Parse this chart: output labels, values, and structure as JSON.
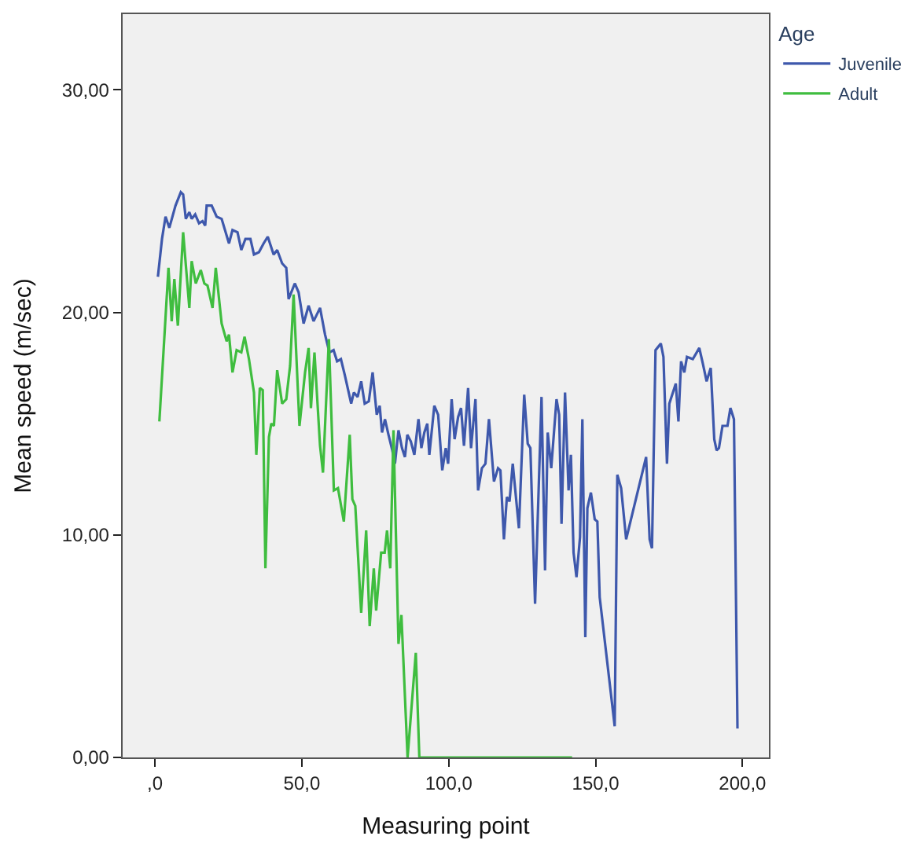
{
  "chart_data": {
    "type": "line",
    "xlabel": "Measuring point",
    "ylabel": "Mean speed (m/sec)",
    "legend_title": "Age",
    "legend": "top right",
    "grid": false,
    "marker": "none",
    "line_style": "solid",
    "xlim": [
      -11,
      209
    ],
    "ylim": [
      0,
      33.4
    ],
    "xticks": [
      {
        "value": 0,
        "label": ",0"
      },
      {
        "value": 50,
        "label": "50,0"
      },
      {
        "value": 100,
        "label": "100,0"
      },
      {
        "value": 150,
        "label": "150,0"
      },
      {
        "value": 200,
        "label": "200,0"
      }
    ],
    "yticks": [
      {
        "value": 0,
        "label": "0,00"
      },
      {
        "value": 10,
        "label": "10,00"
      },
      {
        "value": 20,
        "label": "20,00"
      },
      {
        "value": 30,
        "label": "30,00"
      }
    ],
    "series": [
      {
        "name": "Juvenile",
        "color": "#3e58ac",
        "x": [
          1,
          2.4,
          3.6,
          4.9,
          7,
          8.8,
          9.6,
          10.5,
          11.7,
          12.5,
          13.7,
          15,
          16.2,
          17.1,
          17.6,
          19.3,
          21,
          22.7,
          25.2,
          26.4,
          28.1,
          29.4,
          30.8,
          32.5,
          33.7,
          35.4,
          37,
          38.4,
          40.4,
          41.6,
          43.3,
          44.7,
          45.5,
          47.6,
          48.9,
          50.6,
          52.3,
          54,
          56.2,
          57.9,
          59.4,
          60.8,
          62,
          63.3,
          64.6,
          66.8,
          67.7,
          69,
          70.2,
          71.4,
          72.8,
          74.1,
          75.5,
          76.5,
          77.3,
          78.3,
          79.5,
          80.8,
          81.7,
          82.9,
          84.1,
          85.1,
          85.9,
          87.1,
          88.3,
          89.7,
          90.7,
          91.7,
          92.7,
          93.4,
          95.1,
          96.4,
          97.8,
          99,
          99.8,
          101,
          102,
          103.2,
          104.2,
          105.2,
          106.6,
          107.6,
          109.1,
          110,
          111.3,
          112.5,
          113.7,
          115.4,
          116.8,
          117.6,
          118.8,
          119.8,
          120.7,
          121.8,
          123.9,
          125.7,
          126.9,
          127.8,
          129.4,
          131.6,
          132.8,
          133.7,
          134.9,
          136.7,
          137.6,
          138.4,
          139.6,
          140.8,
          141.6,
          142.5,
          143.5,
          144.7,
          145.5,
          146.5,
          147.2,
          148.4,
          149.7,
          150.6,
          151.4,
          156.5,
          157.4,
          158.7,
          160.4,
          167.2,
          168.4,
          169.2,
          170.4,
          172.2,
          173.1,
          174.3,
          175.1,
          177.3,
          178.2,
          179.1,
          180.2,
          181.1,
          183.1,
          185.3,
          186.5,
          187.8,
          189.2,
          190.4,
          191.2,
          192,
          193.2,
          194.9,
          195.9,
          197.1,
          198.3
        ],
        "values": [
          21.6,
          23.3,
          24.3,
          23.8,
          24.8,
          25.4,
          25.3,
          24.2,
          24.5,
          24.2,
          24.4,
          24.0,
          24.1,
          23.9,
          24.8,
          24.8,
          24.3,
          24.2,
          23.1,
          23.7,
          23.6,
          22.8,
          23.3,
          23.3,
          22.6,
          22.7,
          23.1,
          23.4,
          22.6,
          22.8,
          22.2,
          22.0,
          20.6,
          21.3,
          20.9,
          19.5,
          20.3,
          19.6,
          20.2,
          19.0,
          18.2,
          18.3,
          17.8,
          17.9,
          17.2,
          15.9,
          16.4,
          16.2,
          16.9,
          15.9,
          16.0,
          17.3,
          15.4,
          15.8,
          14.6,
          15.2,
          14.5,
          13.8,
          13.2,
          14.7,
          13.9,
          13.5,
          14.5,
          14.2,
          13.6,
          15.2,
          13.9,
          14.6,
          15.0,
          13.6,
          15.8,
          15.4,
          12.9,
          13.9,
          13.2,
          16.1,
          14.3,
          15.3,
          15.7,
          14.0,
          16.6,
          13.9,
          16.1,
          12.0,
          13.0,
          13.2,
          15.2,
          12.4,
          13.0,
          12.9,
          9.8,
          11.7,
          11.5,
          13.2,
          10.3,
          16.3,
          14.1,
          13.9,
          6.9,
          16.2,
          8.4,
          14.6,
          13.0,
          16.1,
          15.4,
          10.5,
          16.4,
          12.0,
          13.6,
          9.2,
          8.1,
          9.9,
          15.2,
          5.4,
          11.2,
          11.9,
          10.7,
          10.6,
          7.2,
          1.4,
          12.7,
          12.1,
          9.8,
          13.5,
          9.8,
          9.4,
          18.3,
          18.6,
          18.0,
          13.2,
          15.9,
          16.8,
          15.1,
          17.8,
          17.3,
          18.0,
          17.9,
          18.4,
          17.7,
          16.9,
          17.5,
          14.3,
          13.8,
          13.9,
          14.9,
          14.9,
          15.7,
          15.2,
          1.3
        ]
      },
      {
        "name": "Adult",
        "color": "#3fbd3f",
        "x": [
          1.5,
          4.6,
          5.7,
          6.6,
          7.8,
          9.6,
          11.7,
          12.5,
          13.9,
          15.6,
          16.8,
          17.9,
          19.6,
          20.7,
          22.7,
          24.4,
          25.2,
          26.4,
          27.8,
          29.4,
          30.5,
          32,
          33.7,
          34.5,
          35.7,
          36.7,
          37.6,
          38.8,
          39.6,
          40.5,
          41.6,
          43.3,
          44.7,
          46,
          47.2,
          49.2,
          51.1,
          52.3,
          53.1,
          54.3,
          56.2,
          57.2,
          59.2,
          60.9,
          62.3,
          64.3,
          66.3,
          67.2,
          68.2,
          70.2,
          71.9,
          73.1,
          74.5,
          75.3,
          77,
          78.2,
          79,
          80.1,
          81.2,
          82.9,
          83.9,
          86,
          88.8,
          90,
          100,
          110,
          120,
          130,
          142
        ],
        "values": [
          15.1,
          22.0,
          19.6,
          21.5,
          19.4,
          23.6,
          20.2,
          22.3,
          21.3,
          21.9,
          21.3,
          21.2,
          20.2,
          22.0,
          19.5,
          18.7,
          19.0,
          17.3,
          18.3,
          18.2,
          18.9,
          17.9,
          16.4,
          13.6,
          16.6,
          16.5,
          8.5,
          14.4,
          15.0,
          14.9,
          17.4,
          15.9,
          16.1,
          17.6,
          20.8,
          14.9,
          17.3,
          18.4,
          15.7,
          18.2,
          14.0,
          12.8,
          18.8,
          12.0,
          12.1,
          10.6,
          14.5,
          11.6,
          11.3,
          6.5,
          10.2,
          5.9,
          8.5,
          6.6,
          9.2,
          9.2,
          10.2,
          8.5,
          14.7,
          5.1,
          6.4,
          0,
          4.7,
          0,
          0,
          0,
          0,
          0,
          0
        ]
      }
    ]
  }
}
